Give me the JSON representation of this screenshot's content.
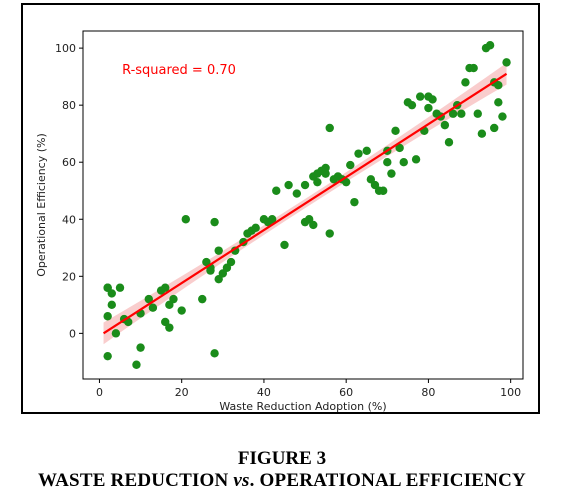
{
  "figure": {
    "label": "FIGURE 3",
    "title_part1": "WASTE REDUCTION ",
    "title_vs": "vs",
    "title_part2": ". OPERATIONAL EFFICIENCY"
  },
  "chart_data": {
    "type": "scatter",
    "xlabel": "Waste Reduction Adoption (%)",
    "ylabel": "Operational Efficiency (%)",
    "xlim": [
      -4,
      103
    ],
    "ylim": [
      -16,
      106
    ],
    "xticks": [
      0,
      20,
      40,
      60,
      80,
      100
    ],
    "yticks": [
      0,
      20,
      40,
      60,
      80,
      100
    ],
    "annotation": "R-squared = 0.70",
    "annotation_color": "#ff0000",
    "point_color": "#1a8c1a",
    "fit_line_color": "#ff0000",
    "band_color": "#f7b8b8",
    "grid": false,
    "fit_line": {
      "x": [
        1,
        99
      ],
      "y": [
        0,
        91
      ]
    },
    "points": {
      "x": [
        2,
        3,
        5,
        2,
        3,
        4,
        6,
        10,
        10,
        2,
        7,
        9,
        12,
        13,
        15,
        16,
        16,
        17,
        18,
        17,
        20,
        21,
        25,
        26,
        27,
        27,
        28,
        28,
        29,
        29,
        30,
        31,
        32,
        33,
        35,
        36,
        37,
        38,
        40,
        41,
        42,
        43,
        45,
        46,
        48,
        50,
        50,
        51,
        52,
        52,
        53,
        53,
        54,
        55,
        55,
        56,
        56,
        57,
        58,
        59,
        60,
        61,
        62,
        63,
        65,
        66,
        67,
        68,
        69,
        70,
        70,
        71,
        72,
        73,
        74,
        75,
        76,
        77,
        78,
        79,
        80,
        80,
        81,
        82,
        83,
        84,
        85,
        86,
        87,
        88,
        89,
        90,
        91,
        92,
        93,
        94,
        95,
        96,
        96,
        97,
        97,
        98,
        99,
        2
      ],
      "y": [
        16,
        10,
        16,
        6,
        14,
        0,
        5,
        -5,
        7,
        -8,
        4,
        -11,
        12,
        9,
        15,
        16,
        4,
        10,
        12,
        2,
        8,
        40,
        12,
        25,
        23,
        22,
        39,
        -7,
        29,
        19,
        21,
        23,
        25,
        29,
        32,
        35,
        36,
        37,
        40,
        39,
        40,
        50,
        31,
        52,
        49,
        52,
        39,
        40,
        38,
        55,
        53,
        56,
        57,
        56,
        58,
        35,
        72,
        54,
        55,
        54,
        53,
        59,
        46,
        63,
        64,
        54,
        52,
        50,
        50,
        60,
        64,
        56,
        71,
        65,
        60,
        81,
        80,
        61,
        83,
        71,
        83,
        79,
        82,
        77,
        76,
        73,
        67,
        77,
        80,
        77,
        88,
        93,
        93,
        77,
        70,
        100,
        101,
        72,
        88,
        81,
        87,
        76,
        95,
        16
      ]
    }
  }
}
